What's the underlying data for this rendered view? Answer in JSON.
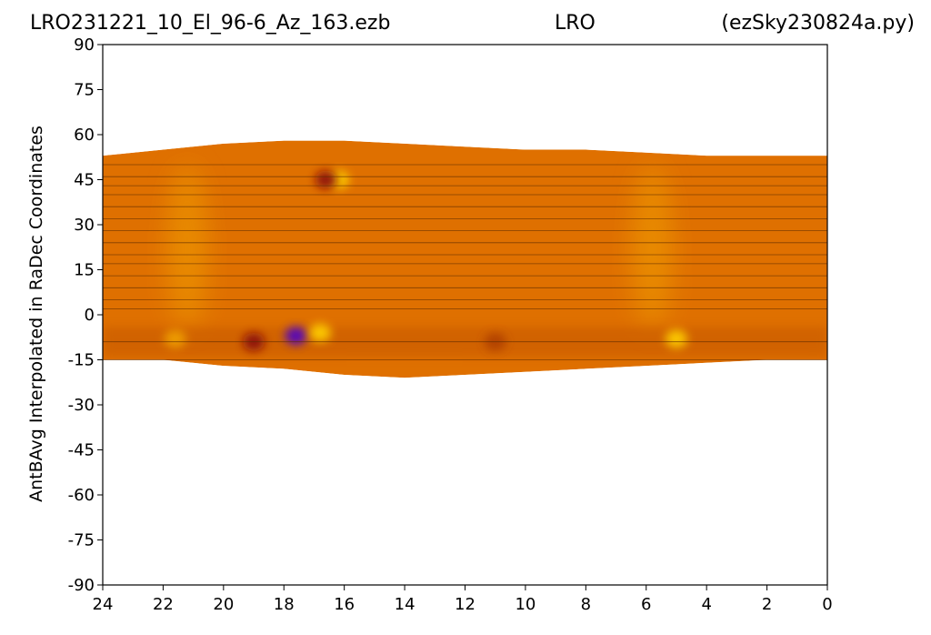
{
  "header": {
    "left": "LRO231221_10_El_96-6_Az_163.ezb",
    "center": "LRO",
    "right": "(ezSky230824a.py)"
  },
  "chart_data": {
    "type": "heatmap",
    "title": "",
    "xlabel": "",
    "ylabel": "AntBAvg Interpolated in RaDec Coordinates",
    "xlim": [
      24,
      0
    ],
    "ylim": [
      -90,
      90
    ],
    "x_ticks": [
      24,
      22,
      20,
      18,
      16,
      14,
      12,
      10,
      8,
      6,
      4,
      2,
      0
    ],
    "y_ticks": [
      90,
      75,
      60,
      45,
      30,
      15,
      0,
      -15,
      -30,
      -45,
      -60,
      -75,
      -90
    ],
    "colormap": [
      "#4b00c8",
      "#8a1010",
      "#c85a00",
      "#e07800",
      "#f0a000",
      "#ffd000"
    ],
    "background_color": "#df7000",
    "coverage_top": [
      [
        24,
        53
      ],
      [
        22,
        55
      ],
      [
        20,
        57
      ],
      [
        18,
        58
      ],
      [
        16,
        58
      ],
      [
        14,
        57
      ],
      [
        12,
        56
      ],
      [
        10,
        55
      ],
      [
        8,
        55
      ],
      [
        6,
        54
      ],
      [
        4,
        53
      ],
      [
        2,
        53
      ],
      [
        0,
        53
      ]
    ],
    "coverage_bottom": [
      [
        24,
        -15
      ],
      [
        22,
        -15
      ],
      [
        20,
        -17
      ],
      [
        18,
        -18
      ],
      [
        16,
        -20
      ],
      [
        14,
        -21
      ],
      [
        12,
        -20
      ],
      [
        10,
        -19
      ],
      [
        8,
        -18
      ],
      [
        6,
        -17
      ],
      [
        4,
        -16
      ],
      [
        2,
        -15
      ],
      [
        0,
        -15
      ]
    ],
    "scan_lines_dec": [
      50,
      46,
      43,
      40,
      36,
      32,
      28,
      24,
      20,
      17,
      13,
      9,
      5,
      2,
      -9,
      -15
    ],
    "features": [
      {
        "ra": 21.2,
        "dec_from": -5,
        "dec_to": 50,
        "color": "#f0a000",
        "kind": "ridge"
      },
      {
        "ra": 5.8,
        "dec_from": -5,
        "dec_to": 50,
        "color": "#f0a000",
        "kind": "ridge"
      },
      {
        "ra": 16.2,
        "dec": 45,
        "color": "#ffd000",
        "kind": "spot"
      },
      {
        "ra": 16.6,
        "dec": 45,
        "color": "#8a1010",
        "kind": "spot"
      },
      {
        "ra": 19.0,
        "dec": -9,
        "color": "#8a1010",
        "kind": "spot"
      },
      {
        "ra": 17.6,
        "dec": -7,
        "color": "#4b00c8",
        "kind": "spot"
      },
      {
        "ra": 16.8,
        "dec": -6,
        "color": "#ffd000",
        "kind": "spot"
      },
      {
        "ra": 11.0,
        "dec": -9,
        "color": "#b04000",
        "kind": "spot"
      },
      {
        "ra": 5.0,
        "dec": -8,
        "color": "#ffd000",
        "kind": "spot"
      },
      {
        "ra": 21.6,
        "dec": -8,
        "color": "#f0a000",
        "kind": "spot"
      }
    ]
  }
}
